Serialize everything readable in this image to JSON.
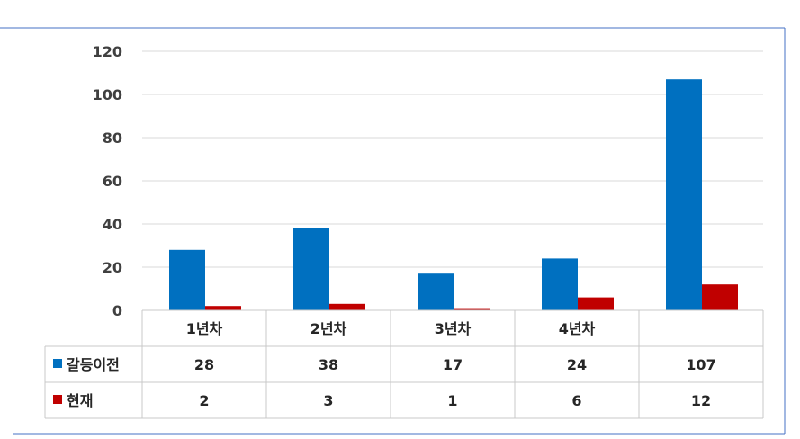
{
  "chart_data": {
    "type": "bar",
    "categories": [
      "1년차",
      "2년차",
      "3년차",
      "4년차",
      ""
    ],
    "series": [
      {
        "name": "갈등이전",
        "values": [
          28,
          38,
          17,
          24,
          107
        ],
        "color": "#0070c0"
      },
      {
        "name": "현재",
        "values": [
          2,
          3,
          1,
          6,
          12
        ],
        "color": "#c00000"
      }
    ],
    "ylim": [
      0,
      120
    ],
    "yticks": [
      0,
      20,
      40,
      60,
      80,
      100,
      120
    ],
    "grid": true,
    "legend": "data table",
    "data_table": true,
    "frame_color": "#4472c4"
  }
}
